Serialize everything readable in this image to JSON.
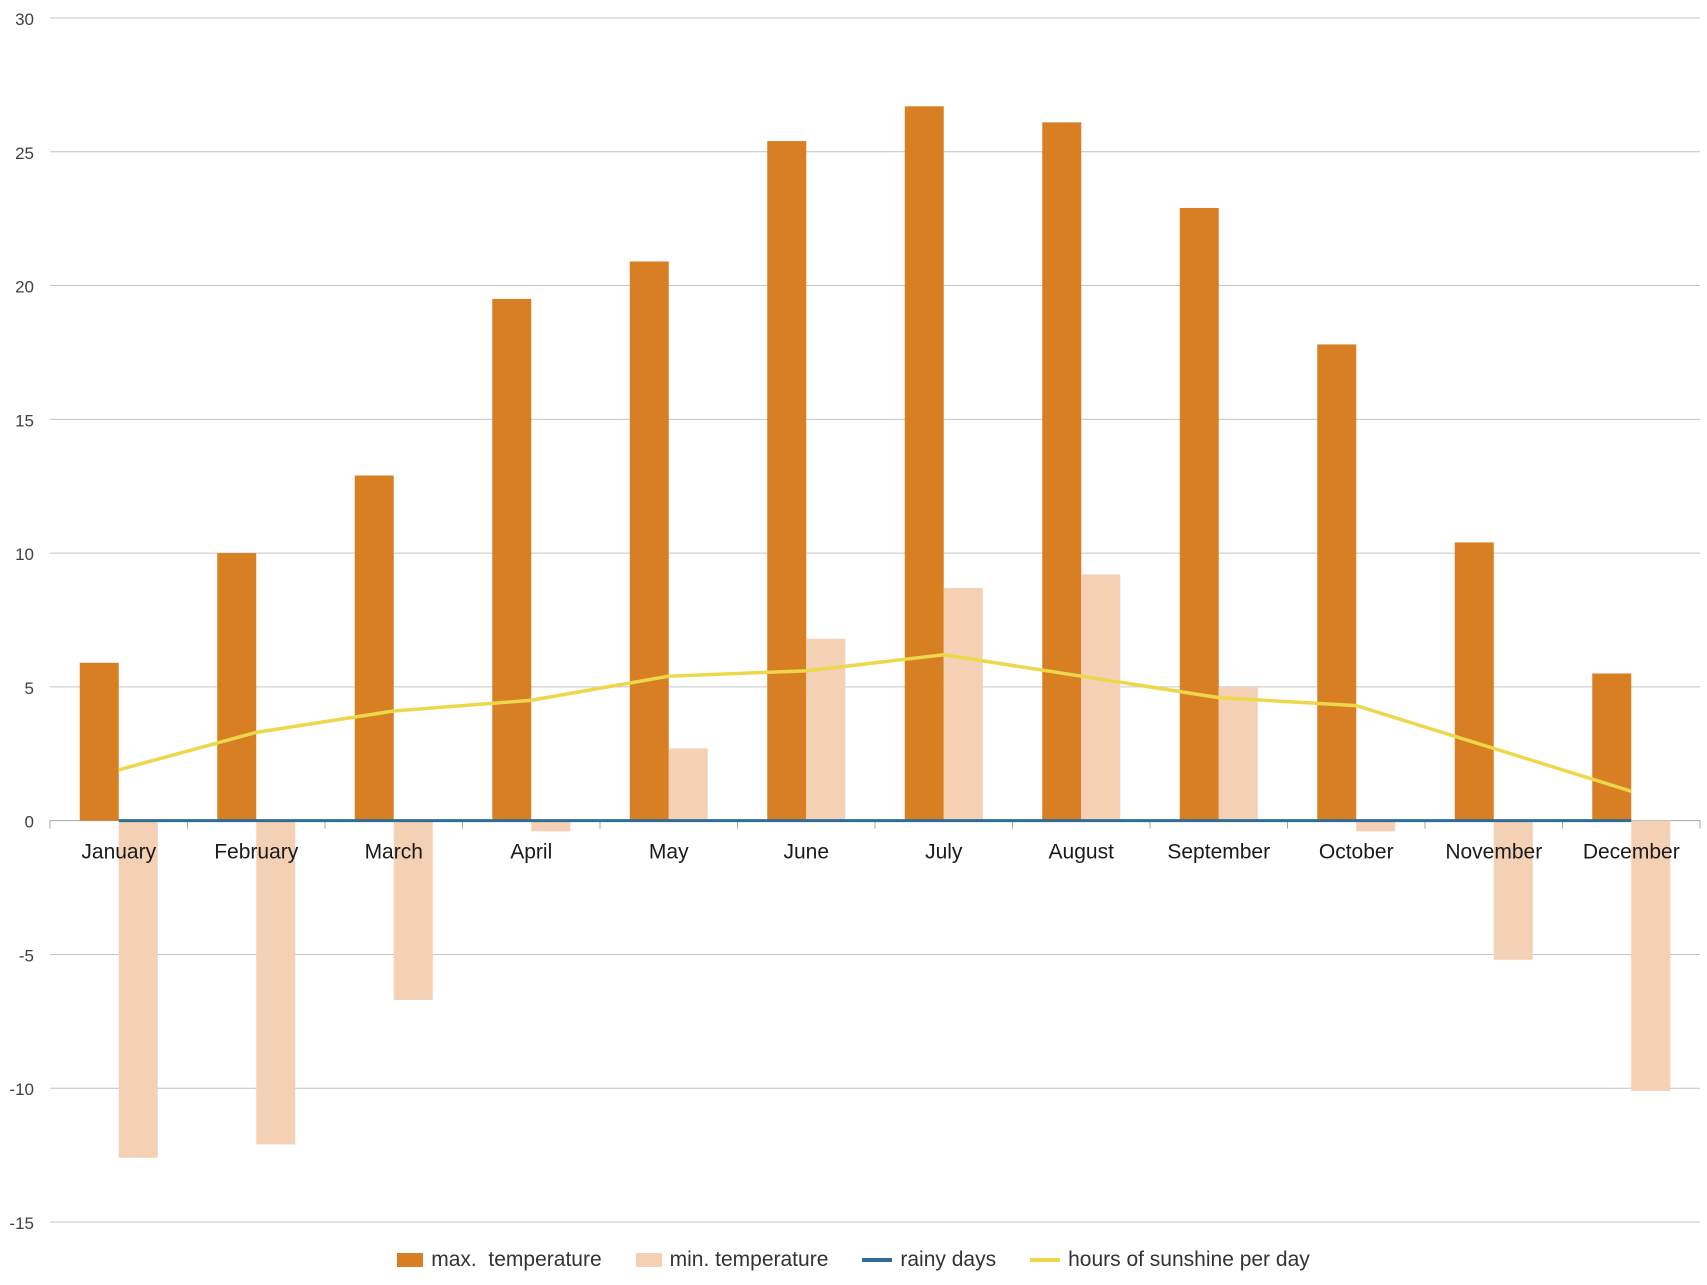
{
  "chart_data": {
    "type": "bar",
    "title": "",
    "xlabel": "",
    "ylabel": "",
    "ylim": [
      -15,
      30
    ],
    "yticks": [
      30,
      25,
      20,
      15,
      10,
      5,
      0,
      -5,
      -10,
      -15
    ],
    "ytick_labels": [
      "30",
      "25",
      "20",
      "15",
      "10",
      "5",
      "0",
      "-5",
      "-10",
      "-15"
    ],
    "grid": true,
    "legend_position": "bottom",
    "categories": [
      "January",
      "February",
      "March",
      "April",
      "May",
      "June",
      "July",
      "August",
      "September",
      "October",
      "November",
      "December"
    ],
    "series": [
      {
        "name": "max.  temperature",
        "type": "bar",
        "color": "#d97f23",
        "values": [
          5.9,
          10.0,
          12.9,
          19.5,
          20.9,
          25.4,
          26.7,
          26.1,
          22.9,
          17.8,
          10.4,
          5.5
        ]
      },
      {
        "name": "min. temperature",
        "type": "bar",
        "color": "#f4d0b5",
        "values": [
          -12.6,
          -12.1,
          -6.7,
          -0.4,
          2.7,
          6.8,
          8.7,
          9.2,
          5.0,
          -0.4,
          -5.2,
          -10.1
        ]
      },
      {
        "name": "rainy days",
        "type": "line",
        "color": "#2e6e96",
        "values": [
          0,
          0,
          0,
          0,
          0,
          0,
          0,
          0,
          0,
          0,
          0,
          0
        ]
      },
      {
        "name": "hours of sunshine per day",
        "type": "line",
        "color": "#ecd84a",
        "values": [
          1.9,
          3.3,
          4.1,
          4.5,
          5.4,
          5.6,
          6.2,
          5.4,
          4.6,
          4.3,
          2.7,
          1.1
        ]
      }
    ]
  }
}
